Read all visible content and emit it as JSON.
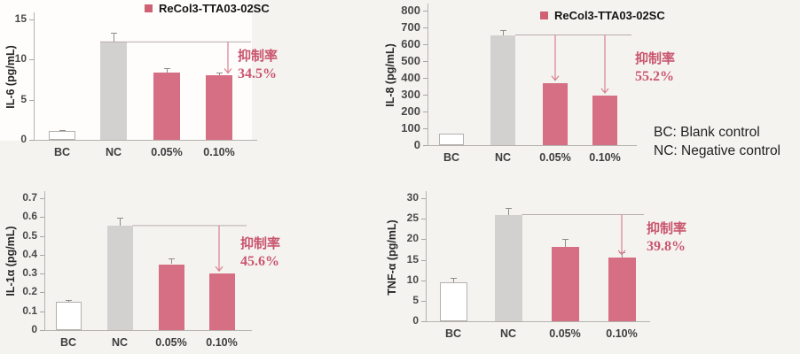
{
  "page": {
    "background": "#f5f3f0",
    "note_lines": [
      "BC: Blank control",
      "NC: Negative control"
    ]
  },
  "colors": {
    "treatment_bar": "#d66f83",
    "control_bar": "#d3d1cf",
    "blank_bar": "#ffffff",
    "annotation_text": "#c9566e",
    "arrow": "#d8808f",
    "reference_line": "#b9abad",
    "legend_swatch": "#cf6173",
    "axis": "#b5b2ae"
  },
  "charts": [
    {
      "id": "il6",
      "legend": "ReCol3-TTA03-02SC",
      "annotation": {
        "label": "抑制率",
        "value": "34.5%"
      },
      "chart_data": {
        "type": "bar",
        "title": "",
        "ylabel": "IL-6 (pg/mL)",
        "xlabel": "",
        "categories": [
          "BC",
          "NC",
          "0.05%",
          "0.10%"
        ],
        "values": [
          1.1,
          12.2,
          8.4,
          8.0
        ],
        "errors": [
          0.15,
          1.2,
          0.5,
          0.4
        ],
        "ylim": [
          0,
          15
        ],
        "yticks": [
          0,
          5,
          10,
          15
        ],
        "grid": false,
        "legend_position": "top",
        "bar_styles": [
          "blank",
          "control",
          "treat",
          "treat"
        ],
        "annotation_targets": [
          "0.10%"
        ]
      }
    },
    {
      "id": "il8",
      "legend": "ReCol3-TTA03-02SC",
      "annotation": {
        "label": "抑制率",
        "value": "55.2%"
      },
      "chart_data": {
        "type": "bar",
        "title": "",
        "ylabel": "IL-8 (pg/mL)",
        "xlabel": "",
        "categories": [
          "BC",
          "NC",
          "0.05%",
          "0.10%"
        ],
        "values": [
          70,
          655,
          370,
          295
        ],
        "errors": [
          0,
          28,
          0,
          0
        ],
        "ylim": [
          0,
          800
        ],
        "yticks": [
          0,
          100,
          200,
          300,
          400,
          500,
          600,
          700,
          800
        ],
        "grid": false,
        "legend_position": "top",
        "bar_styles": [
          "blank",
          "control",
          "treat",
          "treat"
        ],
        "annotation_targets": [
          "0.05%",
          "0.10%"
        ]
      }
    },
    {
      "id": "il1a",
      "legend": null,
      "annotation": {
        "label": "抑制率",
        "value": "45.6%"
      },
      "chart_data": {
        "type": "bar",
        "title": "",
        "ylabel": "IL-1α (pg/mL)",
        "xlabel": "",
        "categories": [
          "BC",
          "NC",
          "0.05%",
          "0.10%"
        ],
        "values": [
          0.15,
          0.555,
          0.35,
          0.3
        ],
        "errors": [
          0.012,
          0.04,
          0.03,
          0
        ],
        "ylim": [
          0,
          0.7
        ],
        "yticks": [
          0,
          0.1,
          0.2,
          0.3,
          0.4,
          0.5,
          0.6,
          0.7
        ],
        "grid": false,
        "legend_position": "none",
        "bar_styles": [
          "blank",
          "control",
          "treat",
          "treat"
        ],
        "annotation_targets": [
          "0.10%"
        ]
      }
    },
    {
      "id": "tnfa",
      "legend": null,
      "annotation": {
        "label": "抑制率",
        "value": "39.8%"
      },
      "chart_data": {
        "type": "bar",
        "title": "",
        "ylabel": "TNF-α (pg/mL)",
        "xlabel": "",
        "categories": [
          "BC",
          "NC",
          "0.05%",
          "0.10%"
        ],
        "values": [
          9.6,
          26,
          18.2,
          15.6
        ],
        "errors": [
          1.0,
          1.7,
          1.8,
          1.3
        ],
        "ylim": [
          0,
          30
        ],
        "yticks": [
          0,
          5,
          10,
          15,
          20,
          25,
          30
        ],
        "grid": false,
        "legend_position": "none",
        "bar_styles": [
          "blank",
          "control",
          "treat",
          "treat"
        ],
        "annotation_targets": [
          "0.10%"
        ]
      }
    }
  ]
}
